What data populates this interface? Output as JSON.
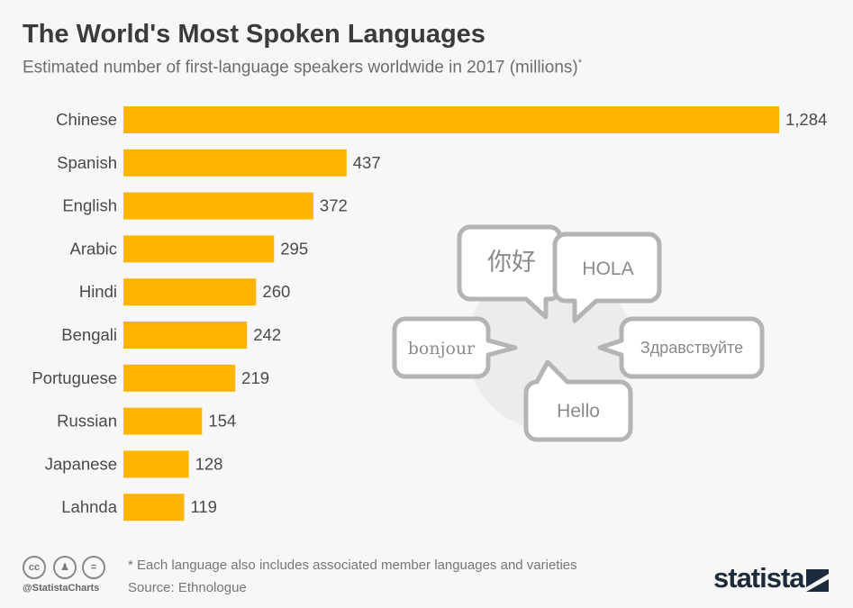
{
  "title": "The World's Most Spoken Languages",
  "subtitle": "Estimated number of first-language speakers worldwide in 2017 (millions)",
  "subtitle_mark": "*",
  "chart_data": {
    "type": "bar",
    "orientation": "horizontal",
    "categories": [
      "Chinese",
      "Spanish",
      "English",
      "Arabic",
      "Hindi",
      "Bengali",
      "Portuguese",
      "Russian",
      "Japanese",
      "Lahnda"
    ],
    "values": [
      1284,
      437,
      372,
      295,
      260,
      242,
      219,
      154,
      128,
      119
    ],
    "value_labels": [
      "1,284",
      "437",
      "372",
      "295",
      "260",
      "242",
      "219",
      "154",
      "128",
      "119"
    ],
    "bar_color": "#ffb400",
    "grid": false
  },
  "illustration": {
    "bubbles": [
      "你好",
      "HOLA",
      "bonjour",
      "Здравствуйте",
      "Hello"
    ]
  },
  "footer": {
    "note": "* Each language also includes associated member languages and varieties",
    "source": "Source: Ethnologue",
    "handle": "@StatistaCharts",
    "license_icons": [
      "cc",
      "by",
      "="
    ],
    "logo": "statista"
  }
}
